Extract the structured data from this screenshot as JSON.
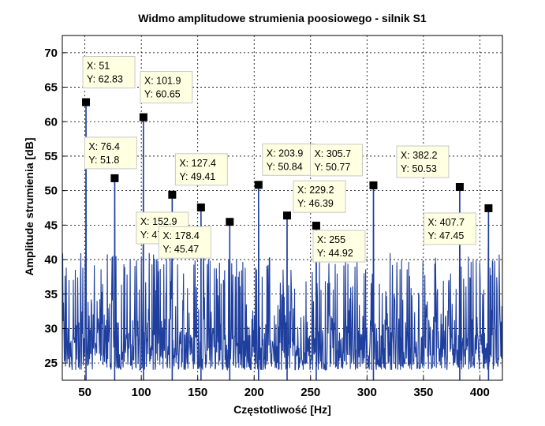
{
  "chart_data": {
    "type": "line",
    "title": "Widmo amplitudowe strumienia poosiowego - silnik S1",
    "xlabel": "Częstotliwość [Hz]",
    "ylabel": "Amplitude strumienia [dB]",
    "xlim": [
      30,
      420
    ],
    "ylim": [
      22.5,
      72.5
    ],
    "xticks": [
      50,
      100,
      150,
      200,
      250,
      300,
      350,
      400
    ],
    "yticks": [
      25,
      30,
      35,
      40,
      45,
      50,
      55,
      60,
      65,
      70
    ],
    "grid": true,
    "series_color": "#1f3f9e",
    "marker_color": "#000000",
    "datatips": [
      {
        "x": 51,
        "y": 62.83,
        "x_label": "X: 51",
        "y_label": "Y: 62.83"
      },
      {
        "x": 76.4,
        "y": 51.8,
        "x_label": "X: 76.4",
        "y_label": "Y: 51.8"
      },
      {
        "x": 101.9,
        "y": 60.65,
        "x_label": "X: 101.9",
        "y_label": "Y: 60.65"
      },
      {
        "x": 127.4,
        "y": 49.41,
        "x_label": "X: 127.4",
        "y_label": "Y: 49.41"
      },
      {
        "x": 152.9,
        "y": 47.56,
        "x_label": "X: 152.9",
        "y_label": "Y: 47.56"
      },
      {
        "x": 178.4,
        "y": 45.47,
        "x_label": "X: 178.4",
        "y_label": "Y: 45.47"
      },
      {
        "x": 203.9,
        "y": 50.84,
        "x_label": "X: 203.9",
        "y_label": "Y: 50.84"
      },
      {
        "x": 229.2,
        "y": 46.39,
        "x_label": "X: 229.2",
        "y_label": "Y: 46.39"
      },
      {
        "x": 255,
        "y": 44.92,
        "x_label": "X: 255",
        "y_label": "Y: 44.92"
      },
      {
        "x": 305.7,
        "y": 50.77,
        "x_label": "X: 305.7",
        "y_label": "Y: 50.77"
      },
      {
        "x": 382.2,
        "y": 50.53,
        "x_label": "X: 382.2",
        "y_label": "Y: 50.53"
      },
      {
        "x": 407.7,
        "y": 47.45,
        "x_label": "X: 407.7",
        "y_label": "Y: 47.45"
      }
    ],
    "noise_floor_range": [
      24,
      41
    ]
  }
}
